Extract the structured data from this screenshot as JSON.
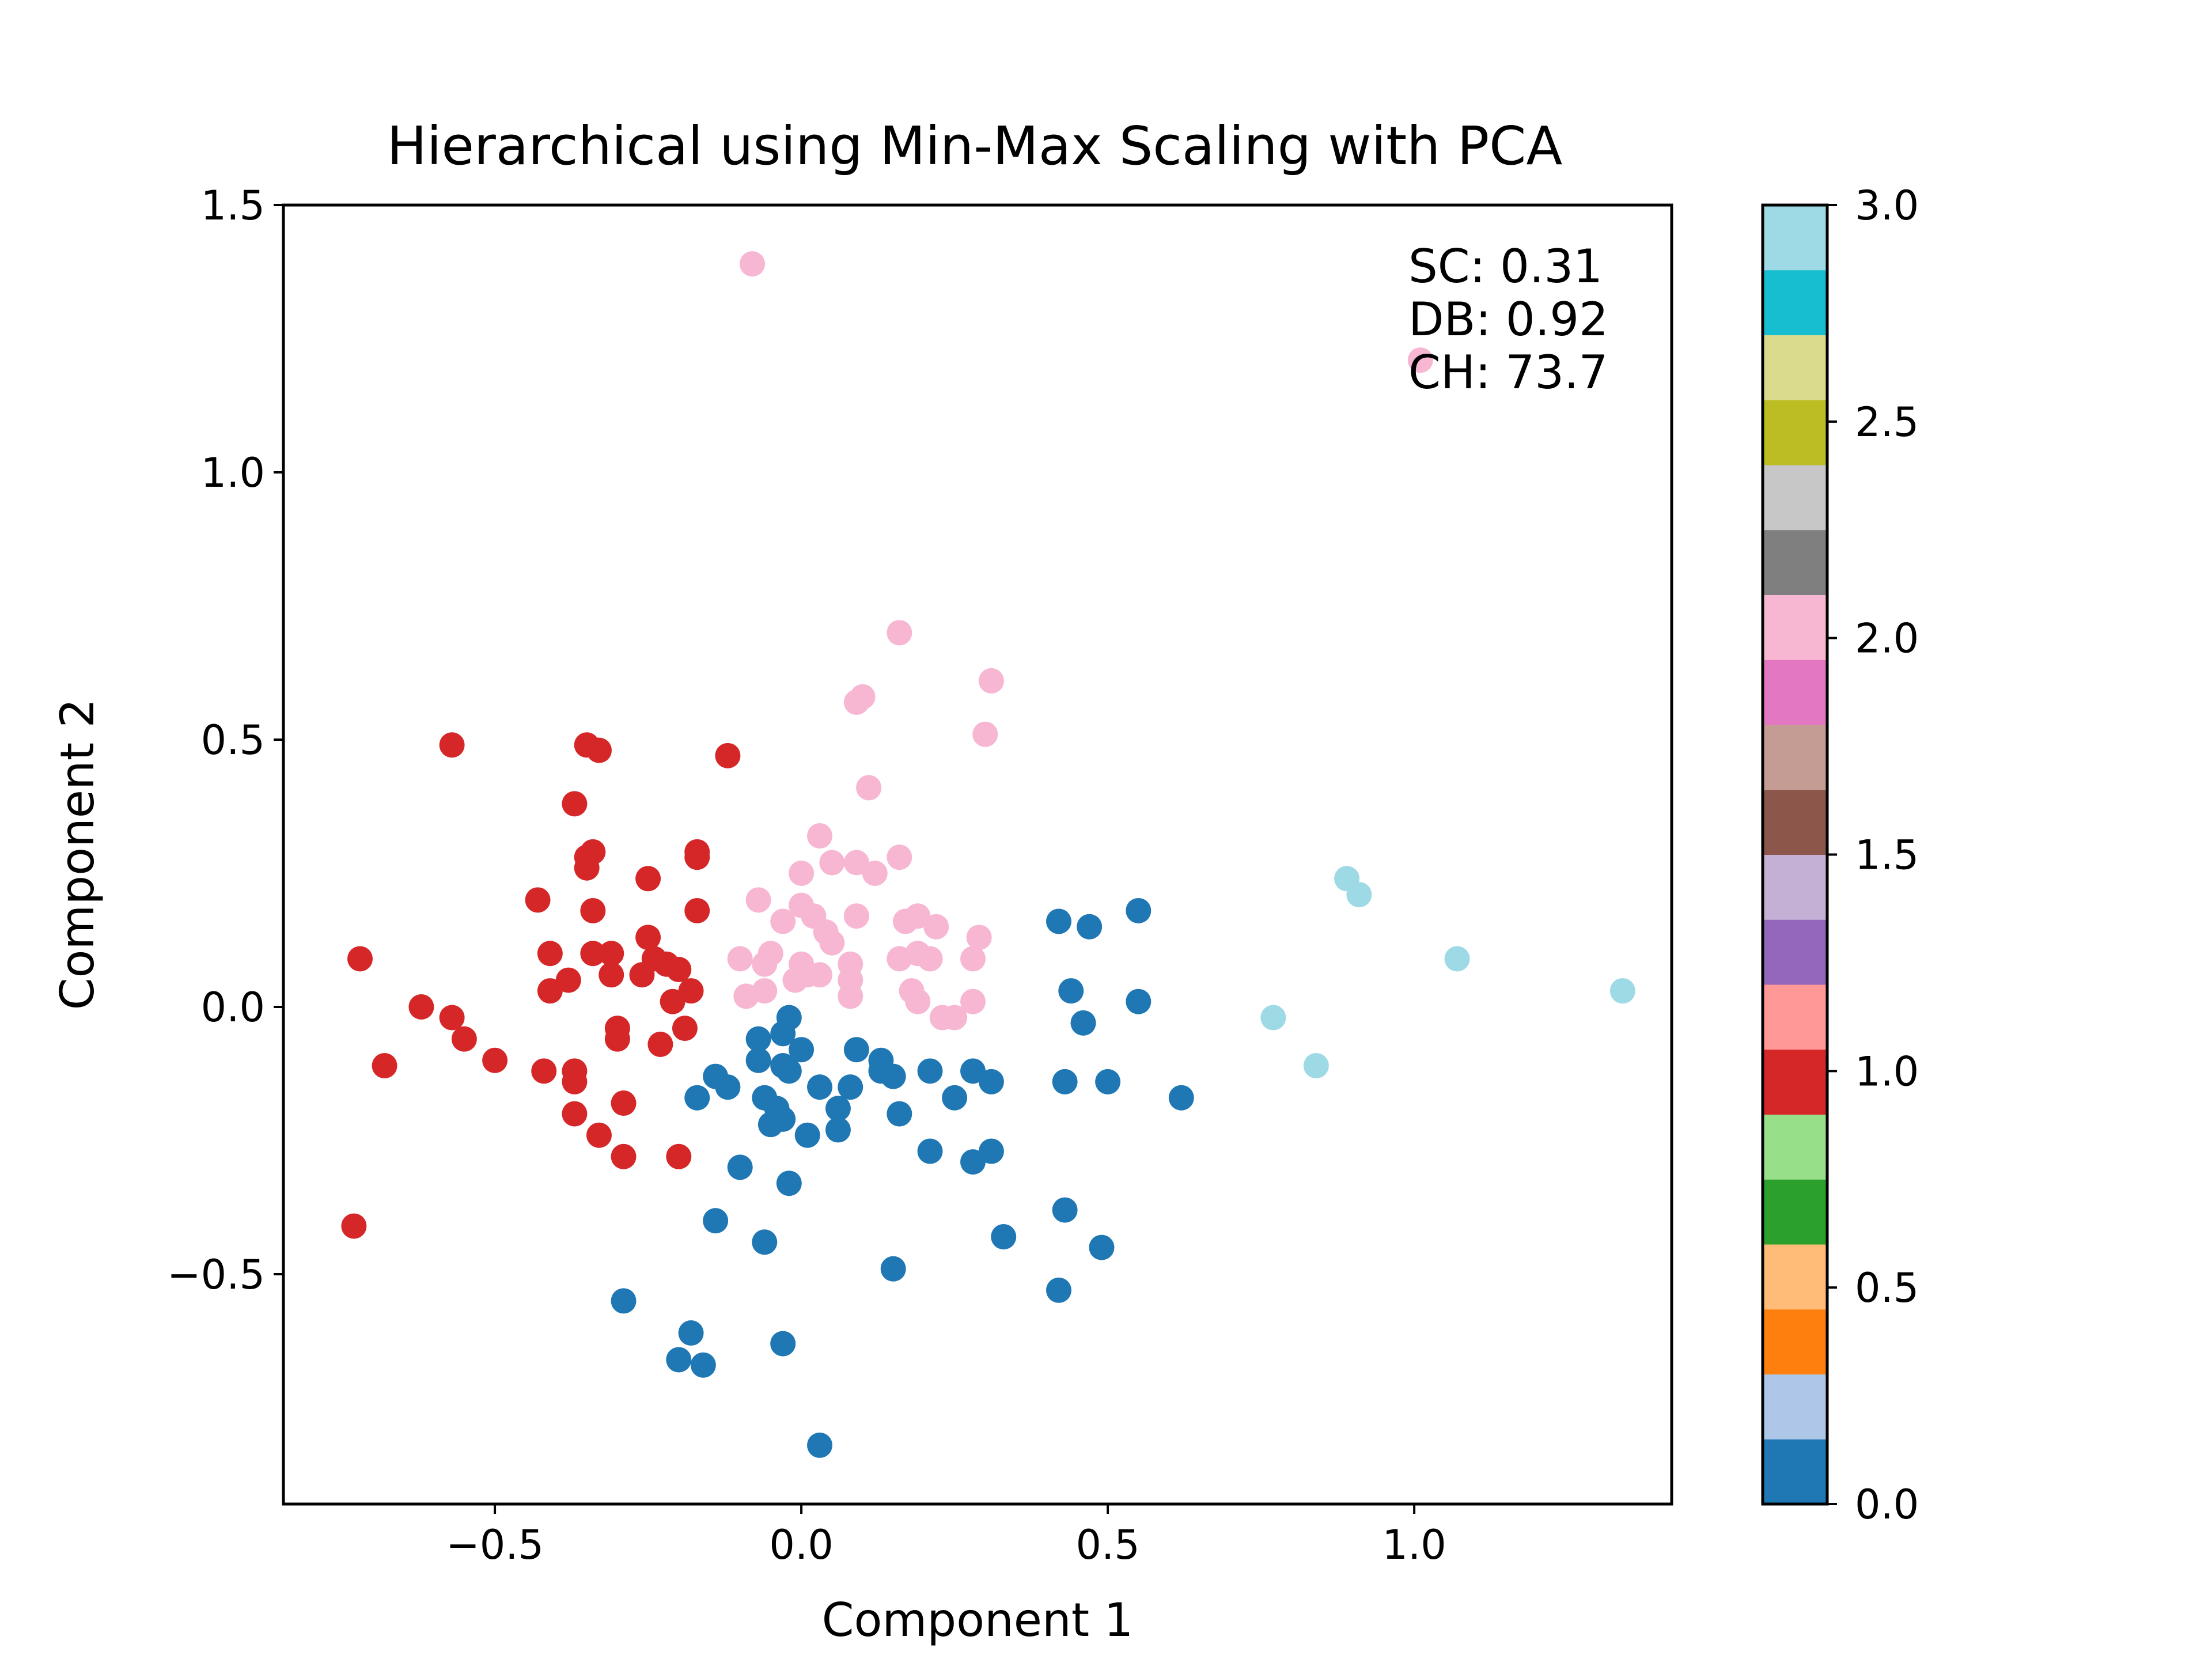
{
  "chart_data": {
    "type": "scatter",
    "title": "Hierarchical using Min-Max Scaling with PCA",
    "xlabel": "Component 1",
    "ylabel": "Component 2",
    "xlim": [
      -0.845,
      1.42
    ],
    "ylim": [
      -0.93,
      1.5
    ],
    "xticks": [
      -0.5,
      0.0,
      0.5,
      1.0
    ],
    "yticks": [
      -0.5,
      0.0,
      0.5,
      1.0,
      1.5
    ],
    "xtick_labels": [
      "−0.5",
      "0.0",
      "0.5",
      "1.0"
    ],
    "ytick_labels": [
      "−0.5",
      "0.0",
      "0.5",
      "1.0",
      "1.5"
    ],
    "grid": false,
    "annotation": [
      "SC: 0.31",
      "DB: 0.92",
      "CH: 73.7"
    ],
    "colorbar": {
      "range": [
        0.0,
        3.0
      ],
      "ticks": [
        0.0,
        0.5,
        1.0,
        1.5,
        2.0,
        2.5,
        3.0
      ],
      "tick_labels": [
        "0.0",
        "0.5",
        "1.0",
        "1.5",
        "2.0",
        "2.5",
        "3.0"
      ],
      "colors": [
        "#1f77b4",
        "#aec7e8",
        "#ff7f0e",
        "#ffbb78",
        "#2ca02c",
        "#98df8a",
        "#d62728",
        "#ff9896",
        "#9467bd",
        "#c5b0d5",
        "#8c564b",
        "#c49c94",
        "#e377c2",
        "#f7b6d2",
        "#7f7f7f",
        "#c7c7c7",
        "#bcbd22",
        "#dbdb8d",
        "#17becf",
        "#9edae5"
      ]
    },
    "cluster_colors": {
      "0": "#1f77b4",
      "1": "#d62728",
      "2": "#f7b6d2",
      "3": "#9edae5"
    },
    "series": [
      {
        "cluster": 0,
        "points": [
          [
            0.42,
            0.16
          ],
          [
            0.47,
            0.15
          ],
          [
            0.55,
            0.18
          ],
          [
            0.44,
            0.03
          ],
          [
            0.55,
            0.01
          ],
          [
            0.46,
            -0.03
          ],
          [
            0.09,
            -0.08
          ],
          [
            0.13,
            -0.1
          ],
          [
            0.13,
            -0.12
          ],
          [
            0.15,
            -0.13
          ],
          [
            0.21,
            -0.12
          ],
          [
            0.28,
            -0.12
          ],
          [
            0.31,
            -0.14
          ],
          [
            0.43,
            -0.14
          ],
          [
            0.5,
            -0.14
          ],
          [
            0.62,
            -0.17
          ],
          [
            0.03,
            -0.15
          ],
          [
            0.08,
            -0.15
          ],
          [
            0.06,
            -0.19
          ],
          [
            -0.07,
            -0.06
          ],
          [
            -0.03,
            -0.05
          ],
          [
            -0.02,
            -0.02
          ],
          [
            0.0,
            -0.08
          ],
          [
            -0.07,
            -0.1
          ],
          [
            -0.03,
            -0.11
          ],
          [
            -0.02,
            -0.12
          ],
          [
            -0.14,
            -0.13
          ],
          [
            -0.12,
            -0.15
          ],
          [
            -0.17,
            -0.17
          ],
          [
            -0.06,
            -0.17
          ],
          [
            -0.04,
            -0.19
          ],
          [
            -0.05,
            -0.22
          ],
          [
            -0.03,
            -0.21
          ],
          [
            0.01,
            -0.24
          ],
          [
            0.06,
            -0.23
          ],
          [
            0.16,
            -0.2
          ],
          [
            0.25,
            -0.17
          ],
          [
            0.21,
            -0.27
          ],
          [
            0.28,
            -0.29
          ],
          [
            0.31,
            -0.27
          ],
          [
            -0.02,
            -0.33
          ],
          [
            -0.1,
            -0.3
          ],
          [
            -0.14,
            -0.4
          ],
          [
            -0.06,
            -0.44
          ],
          [
            0.33,
            -0.43
          ],
          [
            0.43,
            -0.38
          ],
          [
            0.49,
            -0.45
          ],
          [
            0.15,
            -0.49
          ],
          [
            0.42,
            -0.53
          ],
          [
            -0.29,
            -0.55
          ],
          [
            -0.18,
            -0.61
          ],
          [
            -0.2,
            -0.66
          ],
          [
            -0.16,
            -0.67
          ],
          [
            -0.03,
            -0.63
          ],
          [
            0.03,
            -0.82
          ]
        ]
      },
      {
        "cluster": 1,
        "points": [
          [
            -0.57,
            0.49
          ],
          [
            -0.35,
            0.49
          ],
          [
            -0.33,
            0.48
          ],
          [
            -0.12,
            0.47
          ],
          [
            -0.37,
            0.38
          ],
          [
            -0.34,
            0.29
          ],
          [
            -0.35,
            0.28
          ],
          [
            -0.35,
            0.26
          ],
          [
            -0.17,
            0.29
          ],
          [
            -0.17,
            0.28
          ],
          [
            -0.25,
            0.24
          ],
          [
            -0.43,
            0.2
          ],
          [
            -0.34,
            0.18
          ],
          [
            -0.17,
            0.18
          ],
          [
            -0.72,
            0.09
          ],
          [
            -0.41,
            0.1
          ],
          [
            -0.34,
            0.1
          ],
          [
            -0.31,
            0.1
          ],
          [
            -0.25,
            0.13
          ],
          [
            -0.24,
            0.09
          ],
          [
            -0.22,
            0.08
          ],
          [
            -0.2,
            0.07
          ],
          [
            -0.38,
            0.05
          ],
          [
            -0.41,
            0.03
          ],
          [
            -0.31,
            0.06
          ],
          [
            -0.26,
            0.06
          ],
          [
            -0.18,
            0.03
          ],
          [
            -0.21,
            0.01
          ],
          [
            -0.62,
            0.0
          ],
          [
            -0.57,
            -0.02
          ],
          [
            -0.55,
            -0.06
          ],
          [
            -0.5,
            -0.1
          ],
          [
            -0.3,
            -0.04
          ],
          [
            -0.3,
            -0.06
          ],
          [
            -0.19,
            -0.04
          ],
          [
            -0.23,
            -0.07
          ],
          [
            -0.68,
            -0.11
          ],
          [
            -0.42,
            -0.12
          ],
          [
            -0.37,
            -0.12
          ],
          [
            -0.37,
            -0.14
          ],
          [
            -0.29,
            -0.18
          ],
          [
            -0.37,
            -0.2
          ],
          [
            -0.33,
            -0.24
          ],
          [
            -0.29,
            -0.28
          ],
          [
            -0.2,
            -0.28
          ],
          [
            -0.73,
            -0.41
          ]
        ]
      },
      {
        "cluster": 2,
        "points": [
          [
            -0.08,
            1.39
          ],
          [
            1.01,
            1.21
          ],
          [
            0.16,
            0.7
          ],
          [
            0.31,
            0.61
          ],
          [
            0.09,
            0.57
          ],
          [
            0.1,
            0.58
          ],
          [
            0.3,
            0.51
          ],
          [
            0.11,
            0.41
          ],
          [
            0.03,
            0.32
          ],
          [
            0.05,
            0.27
          ],
          [
            0.09,
            0.27
          ],
          [
            0.12,
            0.25
          ],
          [
            0.16,
            0.28
          ],
          [
            0.0,
            0.25
          ],
          [
            -0.07,
            0.2
          ],
          [
            0.0,
            0.19
          ],
          [
            0.02,
            0.17
          ],
          [
            -0.03,
            0.16
          ],
          [
            0.04,
            0.14
          ],
          [
            0.05,
            0.12
          ],
          [
            0.09,
            0.17
          ],
          [
            0.17,
            0.16
          ],
          [
            0.19,
            0.17
          ],
          [
            0.22,
            0.15
          ],
          [
            0.29,
            0.13
          ],
          [
            -0.05,
            0.1
          ],
          [
            -0.06,
            0.08
          ],
          [
            -0.1,
            0.09
          ],
          [
            0.0,
            0.08
          ],
          [
            0.08,
            0.08
          ],
          [
            0.16,
            0.09
          ],
          [
            0.19,
            0.1
          ],
          [
            0.21,
            0.09
          ],
          [
            0.28,
            0.09
          ],
          [
            -0.06,
            0.03
          ],
          [
            -0.09,
            0.02
          ],
          [
            -0.01,
            0.05
          ],
          [
            0.01,
            0.06
          ],
          [
            0.03,
            0.06
          ],
          [
            0.08,
            0.05
          ],
          [
            0.08,
            0.02
          ],
          [
            0.18,
            0.03
          ],
          [
            0.19,
            0.01
          ],
          [
            0.23,
            -0.02
          ],
          [
            0.25,
            -0.02
          ],
          [
            0.28,
            0.01
          ]
        ]
      },
      {
        "cluster": 3,
        "points": [
          [
            0.89,
            0.24
          ],
          [
            0.91,
            0.21
          ],
          [
            1.07,
            0.09
          ],
          [
            1.34,
            0.03
          ],
          [
            0.77,
            -0.02
          ],
          [
            0.84,
            -0.11
          ]
        ]
      }
    ]
  }
}
